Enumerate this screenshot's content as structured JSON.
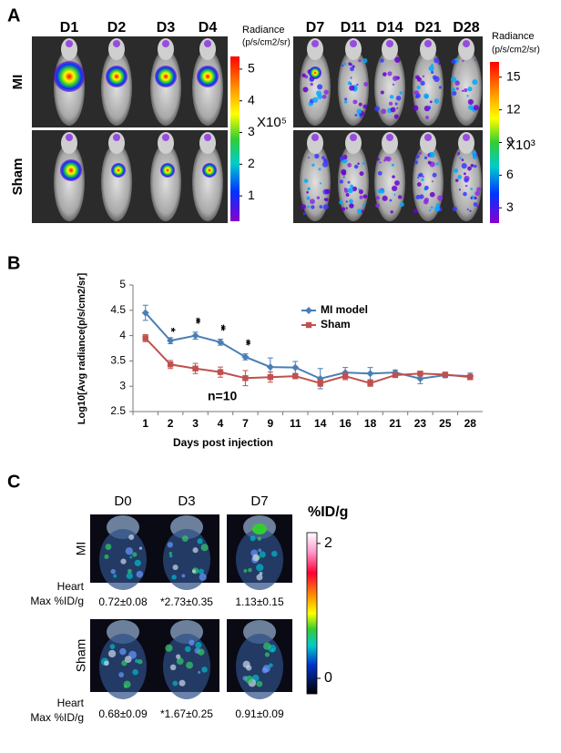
{
  "panel_a": {
    "label": "A",
    "rows": [
      "MI",
      "Sham"
    ],
    "groups": [
      {
        "days": [
          "D1",
          "D2",
          "D3",
          "D4"
        ],
        "colorbar": {
          "title": [
            "Radiance",
            "(p/s/cm2/sr)"
          ],
          "ticks": [
            1,
            2,
            3,
            4,
            5
          ],
          "lim": [
            0.2,
            5.4
          ],
          "multiplier": "X10⁵"
        }
      },
      {
        "days": [
          "D7",
          "D11",
          "D14",
          "D21",
          "D28"
        ],
        "colorbar": {
          "title": [
            "Radiance",
            "(p/s/cm2/sr)"
          ],
          "ticks": [
            3,
            6,
            9,
            12,
            15
          ],
          "lim": [
            1.6,
            16.4
          ],
          "multiplier": "X10³"
        }
      }
    ]
  },
  "chart_data": {
    "type": "line",
    "label": "B",
    "xlabel": "Days post injection",
    "ylabel": "Log10[Avg radiance(p/s/cm2/sr]",
    "categories": [
      "1",
      "2",
      "3",
      "4",
      "7",
      "9",
      "11",
      "14",
      "16",
      "18",
      "21",
      "23",
      "25",
      "28"
    ],
    "series": [
      {
        "name": "MI model",
        "color": "#4a7fb5",
        "marker": "diamond",
        "values": [
          4.45,
          3.9,
          4.0,
          3.87,
          3.58,
          3.38,
          3.37,
          3.15,
          3.27,
          3.25,
          3.27,
          3.15,
          3.22,
          3.2
        ],
        "errors": [
          0.15,
          0.06,
          0.07,
          0.06,
          0.06,
          0.18,
          0.12,
          0.2,
          0.1,
          0.12,
          0.05,
          0.1,
          0.05,
          0.06
        ]
      },
      {
        "name": "Sham",
        "color": "#c0504d",
        "marker": "square",
        "values": [
          3.95,
          3.43,
          3.35,
          3.28,
          3.16,
          3.18,
          3.2,
          3.06,
          3.2,
          3.06,
          3.22,
          3.25,
          3.23,
          3.18
        ],
        "errors": [
          0.07,
          0.08,
          0.1,
          0.1,
          0.15,
          0.1,
          0.05,
          0.06,
          0.07,
          0.06,
          0.04,
          0.04,
          0.04,
          0.05
        ]
      }
    ],
    "significance": [
      null,
      "*",
      "**",
      "**",
      "**",
      null,
      null,
      null,
      null,
      null,
      null,
      null,
      null,
      null
    ],
    "annotations": [
      "n=10"
    ],
    "ylim": [
      2.5,
      5
    ],
    "yticks": [
      2.5,
      3,
      3.5,
      4,
      4.5,
      5
    ],
    "grid": false,
    "legend": "upper right"
  },
  "panel_c": {
    "label": "C",
    "days": [
      "D0",
      "D3",
      "D7"
    ],
    "rows": [
      {
        "name": "MI",
        "stat_label": [
          "Heart",
          "Max %ID/g"
        ],
        "stats": [
          "0.72±0.08",
          "*2.73±0.35",
          "1.13±0.15"
        ]
      },
      {
        "name": "Sham",
        "stat_label": [
          "Heart",
          "Max %ID/g"
        ],
        "stats": [
          "0.68±0.09",
          "*1.67±0.25",
          "0.91±0.09"
        ]
      }
    ],
    "colorbar": {
      "title": "%ID/g",
      "ticks": [
        0,
        2
      ],
      "lim": [
        -0.23,
        2.16
      ]
    }
  }
}
